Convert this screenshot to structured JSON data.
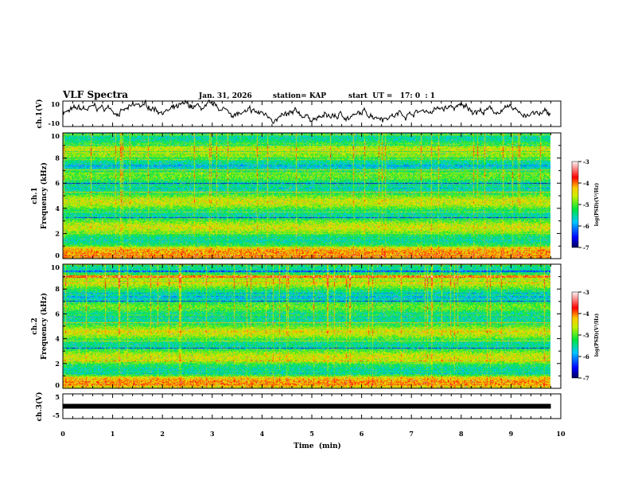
{
  "header": {
    "title": "VLF Spectra",
    "date": "Jan. 31, 2026",
    "station": "station= KAP",
    "start": "start  UT =   17: 0  : 1"
  },
  "chart_data": [
    {
      "type": "line",
      "name": "ch1-waveform",
      "ylabel": "ch.1(V)",
      "ylim": [
        -10,
        10
      ],
      "yticks": [
        "10",
        "-10"
      ],
      "xlim": [
        0,
        10
      ],
      "data_end": 9.8
    },
    {
      "type": "heatmap",
      "name": "ch1-spectrogram",
      "ylabel": "ch.1\nFrequency (kHz)",
      "ylabel_top": "ch.1",
      "ylabel_bottom": "Frequency (kHz)",
      "ylim": [
        0,
        10
      ],
      "yticks": [
        "0",
        "2",
        "4",
        "6",
        "8",
        "10"
      ],
      "xlim": [
        0,
        10
      ],
      "colorbar": {
        "label": "log(PSD)(V²/Hz)",
        "range": [
          -7,
          -3
        ],
        "ticks": [
          "-3",
          "-4",
          "-5",
          "-6",
          "-7"
        ]
      }
    },
    {
      "type": "heatmap",
      "name": "ch2-spectrogram",
      "ylabel_top": "ch.2",
      "ylabel_bottom": "Frequency (kHz)",
      "ylim": [
        0,
        10
      ],
      "yticks": [
        "0",
        "2",
        "4",
        "6",
        "8",
        "10"
      ],
      "xlim": [
        0,
        10
      ],
      "colorbar": {
        "label": "log(PSD)(V²/Hz)",
        "range": [
          -7,
          -3
        ],
        "ticks": [
          "-3",
          "-4",
          "-5",
          "-6",
          "-7"
        ]
      }
    },
    {
      "type": "line",
      "name": "ch3-waveform",
      "ylabel": "ch.3(V)",
      "ylim": [
        -5,
        5
      ],
      "yticks": [
        "5",
        "-5"
      ],
      "value": 0,
      "xlim": [
        0,
        10
      ],
      "xlabel": "Time  (min)",
      "xticks": [
        "0",
        "1",
        "2",
        "3",
        "4",
        "5",
        "6",
        "7",
        "8",
        "9",
        "10"
      ]
    }
  ]
}
